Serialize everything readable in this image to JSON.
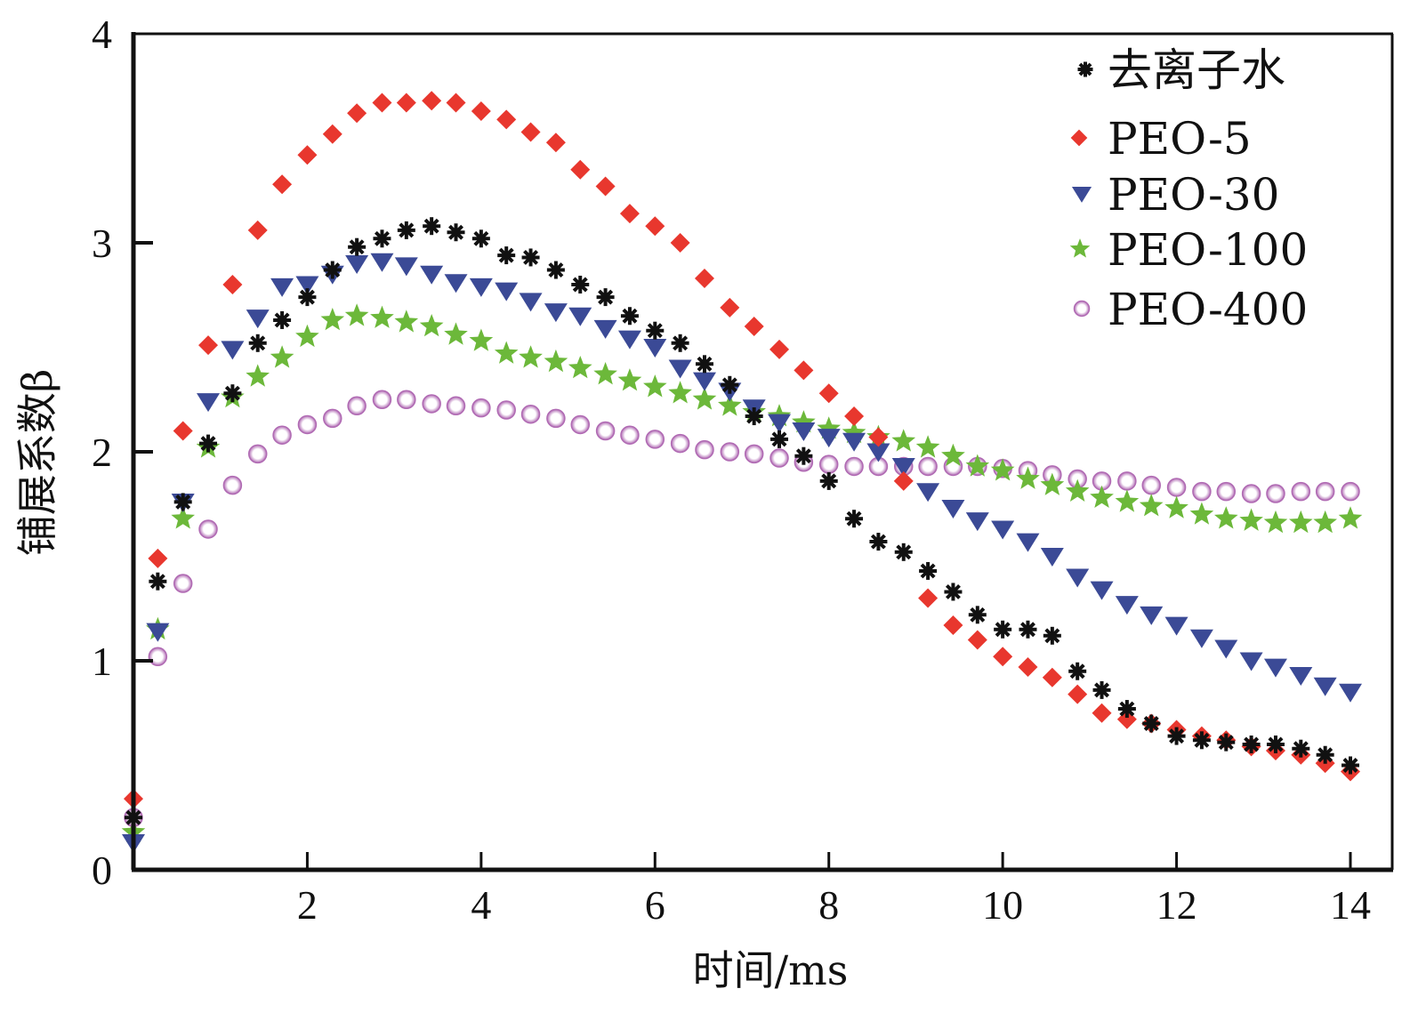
{
  "chart_data": {
    "type": "scatter",
    "title": "",
    "xlabel": "时间/ms",
    "ylabel": "铺展系数β",
    "xlim": [
      0,
      14.5
    ],
    "ylim": [
      0,
      4
    ],
    "xticks": [
      2,
      4,
      6,
      8,
      10,
      12,
      14
    ],
    "xtick_labels": [
      "2",
      "4",
      "6",
      "8",
      "10",
      "12",
      "14"
    ],
    "yticks": [
      0,
      1,
      2,
      3,
      4
    ],
    "ytick_labels": [
      "0",
      "1",
      "2",
      "3",
      "4"
    ],
    "grid": false,
    "legend_position": "top-right",
    "x": [
      0,
      0.28,
      0.57,
      0.86,
      1.14,
      1.43,
      1.71,
      2.0,
      2.29,
      2.57,
      2.86,
      3.14,
      3.43,
      3.71,
      4.0,
      4.29,
      4.57,
      4.86,
      5.14,
      5.43,
      5.71,
      6.0,
      6.29,
      6.57,
      6.86,
      7.14,
      7.43,
      7.71,
      8.0,
      8.29,
      8.57,
      8.86,
      9.14,
      9.43,
      9.71,
      10.0,
      10.29,
      10.57,
      10.86,
      11.14,
      11.43,
      11.71,
      12.0,
      12.29,
      12.57,
      12.86,
      13.14,
      13.43,
      13.71,
      14.0
    ],
    "series": [
      {
        "name": "去离子水",
        "marker": "asterisk",
        "color": "#111111",
        "values": [
          0.25,
          1.38,
          1.76,
          2.04,
          2.28,
          2.52,
          2.63,
          2.74,
          2.87,
          2.98,
          3.02,
          3.06,
          3.08,
          3.05,
          3.02,
          2.94,
          2.93,
          2.87,
          2.8,
          2.74,
          2.65,
          2.58,
          2.52,
          2.42,
          2.32,
          2.17,
          2.06,
          1.98,
          1.86,
          1.68,
          1.57,
          1.52,
          1.43,
          1.33,
          1.22,
          1.15,
          1.15,
          1.12,
          0.95,
          0.86,
          0.77,
          0.7,
          0.64,
          0.62,
          0.61,
          0.6,
          0.6,
          0.58,
          0.55,
          0.5
        ]
      },
      {
        "name": "PEO-5",
        "marker": "diamond",
        "color": "#e8372e",
        "values": [
          0.34,
          1.49,
          2.1,
          2.51,
          2.8,
          3.06,
          3.28,
          3.42,
          3.52,
          3.62,
          3.67,
          3.67,
          3.68,
          3.67,
          3.63,
          3.59,
          3.53,
          3.48,
          3.35,
          3.27,
          3.14,
          3.08,
          3.0,
          2.83,
          2.69,
          2.6,
          2.49,
          2.39,
          2.28,
          2.17,
          2.07,
          1.86,
          1.3,
          1.17,
          1.1,
          1.02,
          0.97,
          0.92,
          0.84,
          0.75,
          0.72,
          0.7,
          0.67,
          0.64,
          0.62,
          0.59,
          0.57,
          0.55,
          0.51,
          0.47
        ]
      },
      {
        "name": "PEO-30",
        "marker": "triangle-down",
        "color": "#3b4a96",
        "values": [
          0.13,
          1.14,
          1.76,
          2.24,
          2.49,
          2.64,
          2.79,
          2.8,
          2.85,
          2.9,
          2.91,
          2.89,
          2.85,
          2.81,
          2.79,
          2.77,
          2.72,
          2.67,
          2.65,
          2.59,
          2.54,
          2.5,
          2.4,
          2.34,
          2.29,
          2.21,
          2.14,
          2.1,
          2.07,
          2.05,
          2.0,
          1.93,
          1.81,
          1.73,
          1.67,
          1.63,
          1.57,
          1.5,
          1.4,
          1.34,
          1.27,
          1.22,
          1.17,
          1.11,
          1.06,
          1.0,
          0.97,
          0.93,
          0.88,
          0.85
        ]
      },
      {
        "name": "PEO-100",
        "marker": "star",
        "color": "#6cb83a",
        "values": [
          0.18,
          1.15,
          1.68,
          2.02,
          2.26,
          2.36,
          2.45,
          2.55,
          2.63,
          2.65,
          2.64,
          2.62,
          2.6,
          2.56,
          2.53,
          2.47,
          2.45,
          2.43,
          2.4,
          2.37,
          2.34,
          2.31,
          2.28,
          2.25,
          2.22,
          2.19,
          2.17,
          2.14,
          2.11,
          2.09,
          2.07,
          2.05,
          2.02,
          1.98,
          1.93,
          1.91,
          1.87,
          1.84,
          1.81,
          1.78,
          1.76,
          1.74,
          1.73,
          1.7,
          1.68,
          1.67,
          1.66,
          1.66,
          1.66,
          1.68
        ]
      },
      {
        "name": "PEO-400",
        "marker": "circle",
        "color": "#b06ab3",
        "values": [
          0.25,
          1.02,
          1.37,
          1.63,
          1.84,
          1.99,
          2.08,
          2.13,
          2.16,
          2.22,
          2.25,
          2.25,
          2.23,
          2.22,
          2.21,
          2.2,
          2.18,
          2.16,
          2.13,
          2.1,
          2.08,
          2.06,
          2.04,
          2.01,
          2.0,
          1.99,
          1.97,
          1.95,
          1.94,
          1.93,
          1.93,
          1.93,
          1.93,
          1.93,
          1.93,
          1.92,
          1.91,
          1.89,
          1.87,
          1.86,
          1.86,
          1.84,
          1.83,
          1.81,
          1.81,
          1.8,
          1.8,
          1.81,
          1.81,
          1.81
        ]
      }
    ]
  }
}
